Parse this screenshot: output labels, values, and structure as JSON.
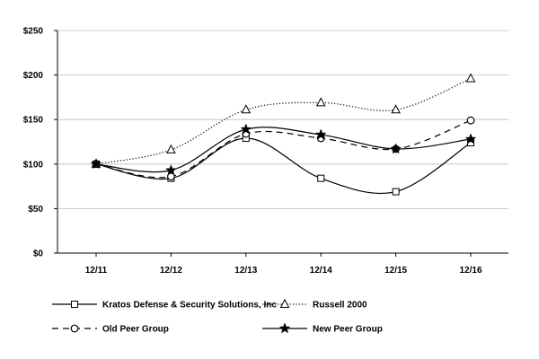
{
  "chart_data": {
    "type": "line",
    "title": "",
    "xlabel": "",
    "ylabel": "",
    "categories": [
      "12/11",
      "12/12",
      "12/13",
      "12/14",
      "12/15",
      "12/16"
    ],
    "y_ticks": [
      "$0",
      "$50",
      "$100",
      "$150",
      "$200",
      "$250"
    ],
    "ylim": [
      0,
      250
    ],
    "grid": "horizontal",
    "legend_position": "bottom",
    "series": [
      {
        "name": "Kratos Defense & Security Solutions, Inc",
        "values": [
          100,
          84,
          129,
          84,
          69,
          124
        ],
        "line_style": "solid",
        "marker": "square",
        "color": "#000000"
      },
      {
        "name": "Russell 2000",
        "values": [
          100,
          116,
          161,
          169,
          161,
          196
        ],
        "line_style": "dotted",
        "marker": "triangle",
        "color": "#000000"
      },
      {
        "name": "Old Peer Group",
        "values": [
          100,
          86,
          134,
          129,
          117,
          149
        ],
        "line_style": "dashed",
        "marker": "circle",
        "color": "#000000"
      },
      {
        "name": "New Peer Group",
        "values": [
          100,
          93,
          139,
          133,
          117,
          128
        ],
        "line_style": "solid",
        "marker": "star",
        "color": "#000000"
      }
    ]
  }
}
